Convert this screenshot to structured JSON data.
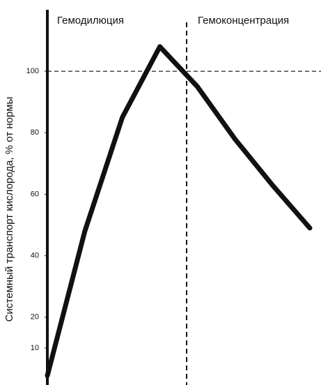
{
  "chart_data": {
    "type": "line",
    "y_label": "Системный транспорт кислорода, % от нормы",
    "annotations": [
      "Гемодилюция",
      "Гемоконцентрация"
    ],
    "categories": [
      null,
      null,
      null,
      null,
      null,
      null,
      null,
      null
    ],
    "series": [
      {
        "name": null,
        "color": "#111111",
        "values": [
          1,
          48,
          85,
          108,
          95,
          78,
          63,
          49
        ]
      }
    ],
    "ylim": [
      0,
      120
    ],
    "yticks": [
      10,
      20,
      40,
      60,
      80,
      100
    ],
    "hline": 100
  }
}
